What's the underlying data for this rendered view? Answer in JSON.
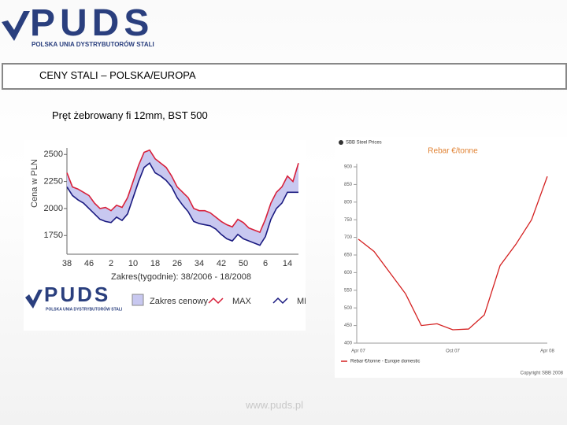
{
  "logo": {
    "name": "PUDS",
    "full_name": "POLSKA UNIA DYSTRYBUTORÓW STALI"
  },
  "title": "CENY STALI – POLSKA/EUROPA",
  "subtitle": "Pręt żebrowany fi 12mm, BST 500",
  "footer": "www.puds.pl",
  "chart_data": [
    {
      "type": "range",
      "ylabel": "Cena w PLN",
      "xlabel": "Zakres(tygodnie): 38/2006 - 18/2008",
      "range_legend": "Zakres cenowy",
      "range_color": "#c8c8f0",
      "categories": [
        "38",
        null,
        null,
        null,
        "46",
        null,
        null,
        null,
        "2",
        null,
        null,
        null,
        "10",
        null,
        null,
        null,
        "18",
        null,
        null,
        null,
        "26",
        null,
        null,
        null,
        "34",
        null,
        null,
        null,
        "42",
        null,
        null,
        null,
        "50",
        null,
        null,
        null,
        "6",
        null,
        null,
        null,
        "14",
        null,
        null
      ],
      "series": [
        {
          "name": "MAX",
          "color": "#d8203a",
          "values": [
            2330,
            2200,
            2180,
            2150,
            2120,
            2050,
            2000,
            2010,
            1980,
            2030,
            2010,
            2100,
            2250,
            2400,
            2520,
            2540,
            2460,
            2420,
            2380,
            2300,
            2200,
            2150,
            2100,
            2000,
            1980,
            1980,
            1960,
            1920,
            1880,
            1850,
            1830,
            1900,
            1870,
            1820,
            1800,
            1780,
            1900,
            2050,
            2150,
            2200,
            2300,
            2250,
            2420
          ]
        },
        {
          "name": "MIN",
          "color": "#1a1a80",
          "values": [
            2200,
            2120,
            2080,
            2050,
            2000,
            1950,
            1900,
            1880,
            1870,
            1920,
            1890,
            1950,
            2100,
            2250,
            2380,
            2420,
            2330,
            2300,
            2260,
            2200,
            2100,
            2030,
            1970,
            1880,
            1860,
            1850,
            1840,
            1810,
            1760,
            1720,
            1700,
            1760,
            1720,
            1700,
            1680,
            1660,
            1740,
            1900,
            2000,
            2050,
            2150,
            2150,
            2150
          ]
        }
      ],
      "ylim": [
        1650,
        2560
      ],
      "yticks": [
        1750,
        2000,
        2250,
        2500
      ]
    },
    {
      "type": "line",
      "header": "SBB Steel Prices",
      "title": "Rebar €/tonne",
      "copyright": "Copyright SBB 2008",
      "categories": [
        "Apr 07",
        null,
        null,
        null,
        null,
        null,
        "Oct 07",
        null,
        null,
        null,
        null,
        null,
        "Apr 08"
      ],
      "series": [
        {
          "name": "Rebar €/tonne - Europe domestic",
          "color": "#d42020",
          "values": [
            695,
            660,
            600,
            540,
            450,
            455,
            438,
            440,
            480,
            620,
            680,
            750,
            873
          ]
        }
      ],
      "ylim": [
        400,
        900
      ],
      "yticks": [
        400,
        450,
        500,
        550,
        600,
        650,
        700,
        750,
        800,
        850,
        900
      ]
    }
  ]
}
